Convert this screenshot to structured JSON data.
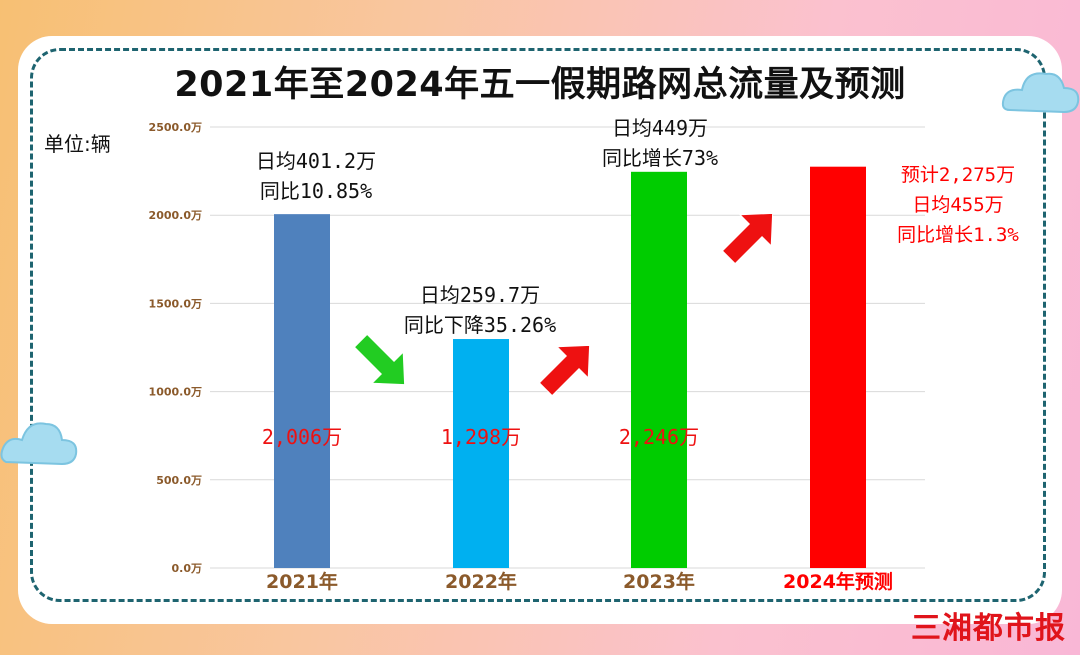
{
  "title": "2021年至2024年五一假期路网总流量及预测",
  "unit_label": "单位:辆",
  "brand": "三湘都市报",
  "chart_data": {
    "type": "bar",
    "categories": [
      "2021年",
      "2022年",
      "2023年",
      "2024年预测"
    ],
    "values": [
      2006,
      1298,
      2246,
      2275
    ],
    "ylim": [
      0,
      2500
    ],
    "yticks": [
      0,
      500,
      1000,
      1500,
      2000,
      2500
    ],
    "ytick_labels": [
      "0.0万",
      "500.0万",
      "1000.0万",
      "1500.0万",
      "2000.0万",
      "2500.0万"
    ],
    "grid": true,
    "bar_colors": [
      "#4f81bd",
      "#00b0f0",
      "#00cc00",
      "#ff0000"
    ],
    "category_label_colors": [
      "#8b5a2b",
      "#8b5a2b",
      "#8b5a2b",
      "#ff0000"
    ],
    "value_labels": [
      "2,006万",
      "1,298万",
      "2,246万",
      ""
    ],
    "annotations": [
      [
        "日均401.2万",
        "同比10.85%"
      ],
      [
        "日均259.7万",
        "同比下降35.26%"
      ],
      [
        "日均449万",
        "同比增长73%"
      ],
      [
        "预计2,275万",
        "日均455万",
        "同比增长1.3%"
      ]
    ],
    "annotation_colors": [
      "#111111",
      "#111111",
      "#111111",
      "#ff0000"
    ],
    "arrows": [
      {
        "direction": "down",
        "color": "#22cc22"
      },
      {
        "direction": "up",
        "color": "#ee1111"
      },
      {
        "direction": "up",
        "color": "#ee1111"
      }
    ]
  }
}
